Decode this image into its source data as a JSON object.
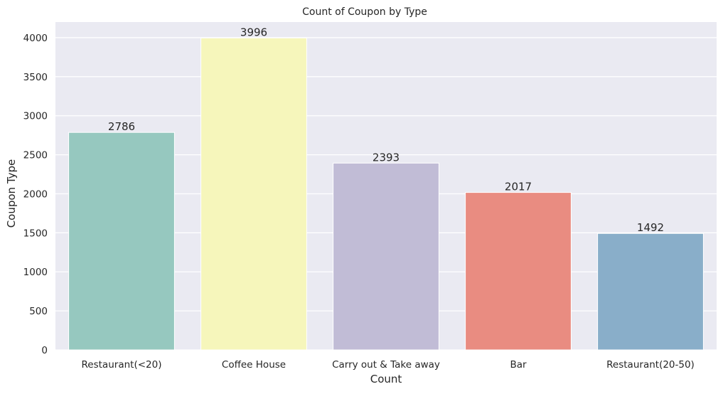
{
  "chart_data": {
    "type": "bar",
    "title": "Count of Coupon by Type",
    "xlabel": "Count",
    "ylabel": "Coupon Type",
    "categories": [
      "Restaurant(<20)",
      "Coffee House",
      "Carry out & Take away",
      "Bar",
      "Restaurant(20-50)"
    ],
    "values": [
      2786,
      3996,
      2393,
      2017,
      1492
    ],
    "data_labels": [
      "2786",
      "3996",
      "2393",
      "2017",
      "1492"
    ],
    "colors": [
      "#96c8bf",
      "#f6f6bb",
      "#c1bcd6",
      "#e98c81",
      "#89aec9"
    ],
    "ylim": [
      0,
      4200
    ],
    "yticks": [
      0,
      500,
      1000,
      1500,
      2000,
      2500,
      3000,
      3500,
      4000
    ],
    "ytick_labels": [
      "0",
      "500",
      "1000",
      "1500",
      "2000",
      "2500",
      "3000",
      "3500",
      "4000"
    ],
    "grid": true,
    "plot_background": "#eaeaf2",
    "grid_color": "#ffffff",
    "text_color": "#262626"
  }
}
